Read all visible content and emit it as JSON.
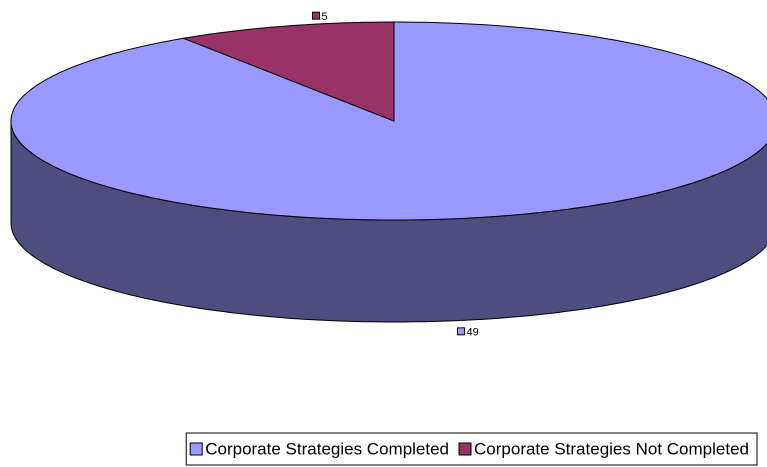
{
  "chart_data": {
    "type": "pie",
    "categories": [
      "Corporate Strategies Completed",
      "Corporate Strategies Not Completed"
    ],
    "values": [
      49,
      5
    ],
    "colors": [
      "#9999ff",
      "#993366"
    ]
  }
}
